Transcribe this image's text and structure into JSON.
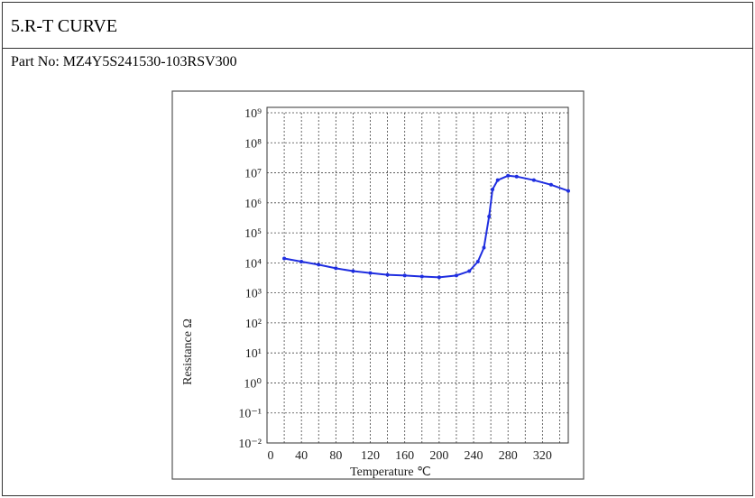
{
  "header": {
    "title": "5.R-T CURVE"
  },
  "part_no": "Part No: MZ4Y5S241530-103RSV300",
  "chart_data": {
    "type": "line",
    "xlabel": "Temperature ℃",
    "ylabel": "Resistance Ω",
    "x": [
      20,
      40,
      60,
      80,
      100,
      120,
      140,
      160,
      180,
      200,
      220,
      235,
      245,
      252,
      258,
      262,
      268,
      280,
      290,
      310,
      330,
      350
    ],
    "series": [
      {
        "color": "#1f2ee0",
        "values": [
          14000,
          11000,
          8700,
          6600,
          5300,
          4600,
          4000,
          3800,
          3500,
          3300,
          3800,
          5300,
          11000,
          32000,
          350000,
          2800000,
          5700000,
          8000000,
          7500000,
          5700000,
          4000000,
          2500000
        ]
      }
    ],
    "xlim": [
      0,
      350
    ],
    "ylim": [
      0.01,
      1000000000
    ],
    "xticks": [
      0,
      40,
      80,
      120,
      160,
      200,
      240,
      280,
      320
    ],
    "yticks": [
      {
        "value": 1000000000,
        "label": "10⁹"
      },
      {
        "value": 100000000,
        "label": "10⁸"
      },
      {
        "value": 10000000,
        "label": "10⁷"
      },
      {
        "value": 1000000,
        "label": "10⁶"
      },
      {
        "value": 100000,
        "label": "10⁵"
      },
      {
        "value": 10000,
        "label": "10⁴"
      },
      {
        "value": 1000,
        "label": "10³"
      },
      {
        "value": 100,
        "label": "10²"
      },
      {
        "value": 10,
        "label": "10¹"
      },
      {
        "value": 1,
        "label": "10⁰"
      },
      {
        "value": 0.1,
        "label": "10⁻¹"
      },
      {
        "value": 0.01,
        "label": "10⁻²"
      }
    ],
    "log_y": true,
    "grid": true
  }
}
